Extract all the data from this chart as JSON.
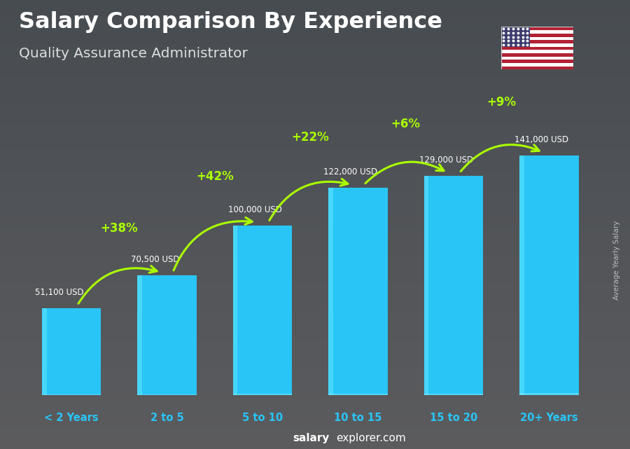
{
  "title": "Salary Comparison By Experience",
  "subtitle": "Quality Assurance Administrator",
  "categories": [
    "< 2 Years",
    "2 to 5",
    "5 to 10",
    "10 to 15",
    "15 to 20",
    "20+ Years"
  ],
  "values": [
    51100,
    70500,
    100000,
    122000,
    129000,
    141000
  ],
  "value_labels": [
    "51,100 USD",
    "70,500 USD",
    "100,000 USD",
    "122,000 USD",
    "129,000 USD",
    "141,000 USD"
  ],
  "pct_labels": [
    "+38%",
    "+42%",
    "+22%",
    "+6%",
    "+9%"
  ],
  "bar_color": "#29C5F6",
  "pct_color": "#aaff00",
  "bg_color": "#3a3f44",
  "ylabel": "Average Yearly Salary",
  "footer_normal": "explorer.com",
  "footer_bold": "salary",
  "fig_width": 9.0,
  "fig_height": 6.41,
  "ylim_max": 185000,
  "bar_width": 0.62
}
